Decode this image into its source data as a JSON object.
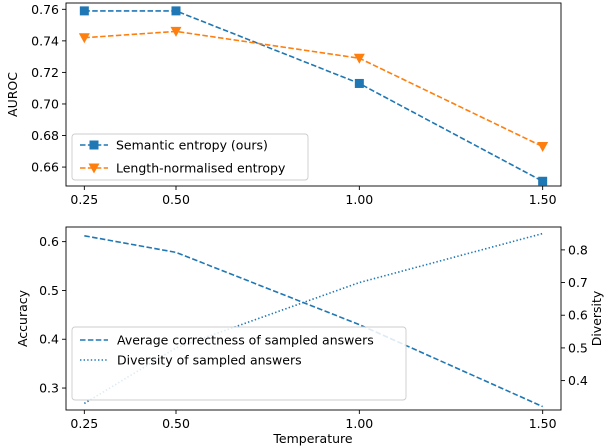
{
  "chart_data": [
    {
      "type": "line",
      "x": [
        0.25,
        0.5,
        1.0,
        1.5
      ],
      "xticks": [
        "0.25",
        "0.50",
        "1.00",
        "1.50"
      ],
      "xlim": [
        0.2,
        1.55
      ],
      "ylabel": "AUROC",
      "ylim": [
        0.648,
        0.764
      ],
      "yticks": [
        "0.66",
        "0.68",
        "0.70",
        "0.72",
        "0.74",
        "0.76"
      ],
      "grid": false,
      "legend_position": "lower-left",
      "series": [
        {
          "name": "Semantic entropy (ours)",
          "values": [
            0.759,
            0.759,
            0.713,
            0.651
          ],
          "color": "#1f77b4",
          "marker": "square",
          "linestyle": "dashed"
        },
        {
          "name": "Length-normalised entropy",
          "values": [
            0.742,
            0.746,
            0.729,
            0.673
          ],
          "color": "#ff7f0e",
          "marker": "triangle-down",
          "linestyle": "dashed"
        }
      ]
    },
    {
      "type": "line",
      "x": [
        0.25,
        0.5,
        1.0,
        1.5
      ],
      "xticks": [
        "0.25",
        "0.50",
        "1.00",
        "1.50"
      ],
      "xlim": [
        0.2,
        1.55
      ],
      "xlabel": "Temperature",
      "ylabel": "Accuracy",
      "ylim": [
        0.255,
        0.63
      ],
      "yticks": [
        "0.3",
        "0.4",
        "0.5",
        "0.6"
      ],
      "ylabel_right": "Diversity",
      "ylim_right": [
        0.31,
        0.87
      ],
      "yticks_right": [
        "0.4",
        "0.5",
        "0.6",
        "0.7",
        "0.8"
      ],
      "grid": false,
      "legend_position": "lower-left",
      "series": [
        {
          "name": "Average correctness of sampled answers",
          "values": [
            0.612,
            0.578,
            0.43,
            0.262
          ],
          "color": "#1f77b4",
          "axis": "left",
          "linestyle": "dashed"
        },
        {
          "name": "Diversity of sampled answers",
          "values": [
            0.33,
            0.5,
            0.7,
            0.85
          ],
          "color": "#1f77b4",
          "axis": "right",
          "linestyle": "dotted"
        }
      ]
    }
  ]
}
